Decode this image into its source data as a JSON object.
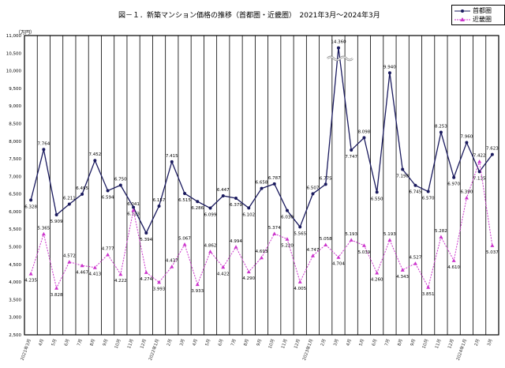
{
  "chart_data": {
    "type": "line",
    "title": "図－１．新築マンション価格の推移（首都圏・近畿圏）　2021年3月～2024年3月",
    "ylabel": "（万円）",
    "ylim": [
      2500,
      11000
    ],
    "yticks": [
      "2,500",
      "3,000",
      "3,500",
      "4,000",
      "4,500",
      "5,000",
      "5,500",
      "6,000",
      "6,500",
      "7,000",
      "7,500",
      "8,000",
      "8,500",
      "9,000",
      "9,500",
      "10,000",
      "10,500",
      "11,000"
    ],
    "grid": "vertical",
    "legend_position": "top-right",
    "axis_break": "10,500 (首都圏 2023年3月)",
    "categories": [
      "2021年3月",
      "4月",
      "5月",
      "6月",
      "7月",
      "8月",
      "9月",
      "10月",
      "11月",
      "12月",
      "2022年1月",
      "2月",
      "3月",
      "4月",
      "5月",
      "6月",
      "7月",
      "8月",
      "9月",
      "10月",
      "11月",
      "12月",
      "2023年1月",
      "2月",
      "3月",
      "4月",
      "5月",
      "6月",
      "7月",
      "8月",
      "9月",
      "10月",
      "11月",
      "12月",
      "2024年1月",
      "2月",
      "3月"
    ],
    "series": [
      {
        "name": "首都圏",
        "color": "#1a1a5e",
        "values": [
          6328,
          7764,
          5909,
          6211,
          6495,
          7452,
          6594,
          6750,
          6123,
          5394,
          6157,
          7415,
          6515,
          6286,
          6099,
          6447,
          6379,
          6102,
          6658,
          6787,
          6030,
          5565,
          6507,
          6775,
          14360,
          7747,
          8098,
          6550,
          9940,
          7198,
          6745,
          6570,
          8253,
          6970,
          7960,
          7135,
          7623
        ]
      },
      {
        "name": "近畿圏",
        "color": "#cc33cc",
        "values": [
          4235,
          5365,
          3828,
          4572,
          4467,
          4413,
          4777,
          4222,
          6041,
          4274,
          3993,
          4437,
          5067,
          3933,
          4862,
          4422,
          4994,
          4290,
          4693,
          5374,
          5220,
          4005,
          4747,
          5058,
          4704,
          5193,
          5039,
          4260,
          5193,
          4343,
          4527,
          3851,
          5282,
          4610,
          6390,
          7422,
          5037
        ]
      }
    ]
  }
}
